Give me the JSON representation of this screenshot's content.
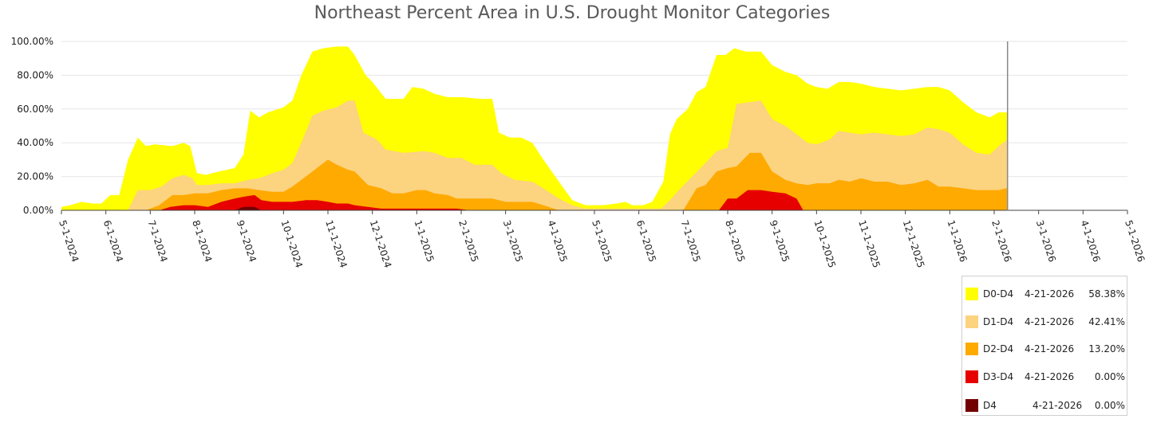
{
  "chart_data": {
    "type": "area",
    "title": "Northeast Percent Area in U.S. Drought Monitor Categories",
    "xlabel": "",
    "ylabel": "",
    "ylim": [
      0,
      100
    ],
    "y_ticks": [
      "0.00%",
      "20.00%",
      "40.00%",
      "60.00%",
      "80.00%",
      "100.00%"
    ],
    "x_ticks": [
      "5-1-2024",
      "6-1-2024",
      "7-1-2024",
      "8-1-2024",
      "9-1-2024",
      "10-1-2024",
      "11-1-2024",
      "12-1-2024",
      "1-1-2025",
      "2-1-2025",
      "3-1-2025",
      "4-1-2025",
      "5-1-2025",
      "6-1-2025",
      "7-1-2025",
      "8-1-2025",
      "9-1-2025",
      "10-1-2025",
      "11-1-2025",
      "12-1-2025",
      "1-1-2026",
      "2-1-2026",
      "3-1-2026",
      "4-1-2026",
      "5-1-2026"
    ],
    "grid": true,
    "legend_position": "bottom-right",
    "series": [
      {
        "name": "D0-D4",
        "color": "#ffff00",
        "legend_date": "4-21-2026",
        "legend_value": "58.38%",
        "points": [
          [
            0,
            2
          ],
          [
            0.2,
            3
          ],
          [
            0.45,
            5
          ],
          [
            0.7,
            4
          ],
          [
            0.9,
            4
          ],
          [
            1.1,
            9
          ],
          [
            1.3,
            9
          ],
          [
            1.5,
            30
          ],
          [
            1.72,
            43
          ],
          [
            1.9,
            38
          ],
          [
            2.1,
            39
          ],
          [
            2.5,
            38
          ],
          [
            2.75,
            40
          ],
          [
            2.9,
            38
          ],
          [
            3.05,
            22
          ],
          [
            3.25,
            21
          ],
          [
            3.55,
            23
          ],
          [
            3.9,
            25
          ],
          [
            4.1,
            33
          ],
          [
            4.25,
            59
          ],
          [
            4.45,
            55
          ],
          [
            4.65,
            58
          ],
          [
            5.0,
            61
          ],
          [
            5.2,
            65
          ],
          [
            5.4,
            80
          ],
          [
            5.65,
            94
          ],
          [
            5.9,
            96
          ],
          [
            6.2,
            97
          ],
          [
            6.45,
            97
          ],
          [
            6.6,
            92
          ],
          [
            6.85,
            80
          ],
          [
            7.0,
            76
          ],
          [
            7.3,
            66
          ],
          [
            7.7,
            66
          ],
          [
            7.9,
            73
          ],
          [
            8.15,
            72
          ],
          [
            8.4,
            69
          ],
          [
            8.7,
            67
          ],
          [
            9.0,
            67
          ],
          [
            9.45,
            66
          ],
          [
            9.7,
            66
          ],
          [
            9.85,
            46
          ],
          [
            10.1,
            43
          ],
          [
            10.35,
            43
          ],
          [
            10.6,
            40
          ],
          [
            10.85,
            30
          ],
          [
            11.2,
            17
          ],
          [
            11.5,
            6
          ],
          [
            11.8,
            3
          ],
          [
            12.2,
            3
          ],
          [
            12.5,
            4
          ],
          [
            12.7,
            5
          ],
          [
            12.85,
            3
          ],
          [
            13.1,
            3
          ],
          [
            13.3,
            5
          ],
          [
            13.55,
            17
          ],
          [
            13.7,
            45
          ],
          [
            13.85,
            54
          ],
          [
            14.1,
            60
          ],
          [
            14.3,
            70
          ],
          [
            14.5,
            73
          ],
          [
            14.75,
            92
          ],
          [
            14.95,
            92
          ],
          [
            15.15,
            96
          ],
          [
            15.4,
            94
          ],
          [
            15.75,
            94
          ],
          [
            16.0,
            86
          ],
          [
            16.3,
            82
          ],
          [
            16.55,
            80
          ],
          [
            16.8,
            75
          ],
          [
            17.0,
            73
          ],
          [
            17.25,
            72
          ],
          [
            17.5,
            76
          ],
          [
            17.75,
            76
          ],
          [
            18.0,
            75
          ],
          [
            18.3,
            73
          ],
          [
            18.6,
            72
          ],
          [
            18.9,
            71
          ],
          [
            19.2,
            72
          ],
          [
            19.5,
            73
          ],
          [
            19.75,
            73
          ],
          [
            20.0,
            71
          ],
          [
            20.3,
            64
          ],
          [
            20.6,
            58
          ],
          [
            20.9,
            55
          ],
          [
            21.1,
            58
          ],
          [
            21.3,
            58
          ]
        ]
      },
      {
        "name": "D1-D4",
        "color": "#fcd37f",
        "legend_date": "4-21-2026",
        "legend_value": "42.41%",
        "points": [
          [
            0,
            0
          ],
          [
            1.5,
            0
          ],
          [
            1.72,
            12
          ],
          [
            2.0,
            12
          ],
          [
            2.25,
            14
          ],
          [
            2.5,
            19
          ],
          [
            2.75,
            21
          ],
          [
            2.95,
            19
          ],
          [
            3.05,
            15
          ],
          [
            3.3,
            15
          ],
          [
            3.6,
            16
          ],
          [
            3.9,
            16
          ],
          [
            4.2,
            18
          ],
          [
            4.45,
            19
          ],
          [
            4.75,
            22
          ],
          [
            5.0,
            24
          ],
          [
            5.2,
            28
          ],
          [
            5.4,
            40
          ],
          [
            5.65,
            56
          ],
          [
            5.9,
            59
          ],
          [
            6.2,
            61
          ],
          [
            6.45,
            65
          ],
          [
            6.6,
            65
          ],
          [
            6.8,
            46
          ],
          [
            7.1,
            42
          ],
          [
            7.3,
            36
          ],
          [
            7.7,
            34
          ],
          [
            8.15,
            35
          ],
          [
            8.4,
            34
          ],
          [
            8.7,
            31
          ],
          [
            9.0,
            31
          ],
          [
            9.3,
            27
          ],
          [
            9.7,
            27
          ],
          [
            9.9,
            22
          ],
          [
            10.2,
            18
          ],
          [
            10.6,
            17
          ],
          [
            10.85,
            13
          ],
          [
            11.2,
            7
          ],
          [
            11.5,
            3
          ],
          [
            11.8,
            1
          ],
          [
            13.5,
            1
          ],
          [
            13.7,
            6
          ],
          [
            13.9,
            12
          ],
          [
            14.2,
            20
          ],
          [
            14.5,
            28
          ],
          [
            14.75,
            35
          ],
          [
            15.0,
            37
          ],
          [
            15.2,
            63
          ],
          [
            15.5,
            64
          ],
          [
            15.75,
            65
          ],
          [
            16.0,
            54
          ],
          [
            16.3,
            50
          ],
          [
            16.55,
            45
          ],
          [
            16.8,
            40
          ],
          [
            17.0,
            39
          ],
          [
            17.3,
            42
          ],
          [
            17.5,
            47
          ],
          [
            17.75,
            46
          ],
          [
            18.0,
            45
          ],
          [
            18.3,
            46
          ],
          [
            18.6,
            45
          ],
          [
            18.9,
            44
          ],
          [
            19.2,
            45
          ],
          [
            19.5,
            49
          ],
          [
            19.75,
            48
          ],
          [
            20.0,
            46
          ],
          [
            20.3,
            39
          ],
          [
            20.6,
            34
          ],
          [
            20.9,
            33
          ],
          [
            21.1,
            38
          ],
          [
            21.3,
            42
          ]
        ]
      },
      {
        "name": "D2-D4",
        "color": "#ffaa00",
        "legend_date": "4-21-2026",
        "legend_value": "13.20%",
        "points": [
          [
            0,
            0
          ],
          [
            1.9,
            0
          ],
          [
            2.2,
            3
          ],
          [
            2.5,
            9
          ],
          [
            2.75,
            9
          ],
          [
            3.0,
            10
          ],
          [
            3.3,
            10
          ],
          [
            3.6,
            12
          ],
          [
            3.9,
            13
          ],
          [
            4.2,
            13
          ],
          [
            4.45,
            12
          ],
          [
            4.75,
            11
          ],
          [
            5.0,
            11
          ],
          [
            5.2,
            14
          ],
          [
            5.5,
            20
          ],
          [
            5.75,
            25
          ],
          [
            6.0,
            30
          ],
          [
            6.2,
            27
          ],
          [
            6.45,
            24
          ],
          [
            6.6,
            23
          ],
          [
            6.9,
            15
          ],
          [
            7.2,
            13
          ],
          [
            7.45,
            10
          ],
          [
            7.7,
            10
          ],
          [
            8.0,
            12
          ],
          [
            8.2,
            12
          ],
          [
            8.4,
            10
          ],
          [
            8.7,
            9
          ],
          [
            8.9,
            7
          ],
          [
            9.2,
            7
          ],
          [
            9.45,
            7
          ],
          [
            9.7,
            7
          ],
          [
            10.0,
            5
          ],
          [
            10.3,
            5
          ],
          [
            10.6,
            5
          ],
          [
            10.85,
            3
          ],
          [
            11.2,
            0
          ],
          [
            14.0,
            0
          ],
          [
            14.3,
            13
          ],
          [
            14.5,
            15
          ],
          [
            14.75,
            23
          ],
          [
            15.0,
            25
          ],
          [
            15.2,
            26
          ],
          [
            15.5,
            34
          ],
          [
            15.75,
            34
          ],
          [
            16.0,
            23
          ],
          [
            16.3,
            18
          ],
          [
            16.55,
            16
          ],
          [
            16.8,
            15
          ],
          [
            17.0,
            16
          ],
          [
            17.3,
            16
          ],
          [
            17.5,
            18
          ],
          [
            17.75,
            17
          ],
          [
            18.0,
            19
          ],
          [
            18.3,
            17
          ],
          [
            18.6,
            17
          ],
          [
            18.9,
            15
          ],
          [
            19.2,
            16
          ],
          [
            19.5,
            18
          ],
          [
            19.75,
            14
          ],
          [
            20.0,
            14
          ],
          [
            20.3,
            13
          ],
          [
            20.6,
            12
          ],
          [
            20.9,
            12
          ],
          [
            21.1,
            12
          ],
          [
            21.3,
            13.2
          ]
        ]
      },
      {
        "name": "D3-D4",
        "color": "#e60000",
        "legend_date": "4-21-2026",
        "legend_value": "0.00%",
        "points": [
          [
            0,
            0
          ],
          [
            2.2,
            0
          ],
          [
            2.45,
            2
          ],
          [
            2.75,
            3
          ],
          [
            3.0,
            3
          ],
          [
            3.3,
            2
          ],
          [
            3.6,
            5
          ],
          [
            3.9,
            7
          ],
          [
            4.1,
            8
          ],
          [
            4.35,
            9
          ],
          [
            4.5,
            6
          ],
          [
            4.75,
            5
          ],
          [
            5.0,
            5
          ],
          [
            5.2,
            5
          ],
          [
            5.5,
            6
          ],
          [
            5.75,
            6
          ],
          [
            6.0,
            5
          ],
          [
            6.2,
            4
          ],
          [
            6.45,
            4
          ],
          [
            6.6,
            3
          ],
          [
            6.9,
            2
          ],
          [
            7.2,
            1
          ],
          [
            7.5,
            1
          ],
          [
            7.9,
            1
          ],
          [
            8.2,
            1
          ],
          [
            8.5,
            1
          ],
          [
            8.9,
            1
          ],
          [
            9.2,
            0
          ],
          [
            14.8,
            0
          ],
          [
            15.0,
            7
          ],
          [
            15.2,
            7
          ],
          [
            15.45,
            12
          ],
          [
            15.75,
            12
          ],
          [
            16.0,
            11
          ],
          [
            16.3,
            10
          ],
          [
            16.55,
            7
          ],
          [
            16.7,
            0
          ],
          [
            21.3,
            0
          ]
        ]
      },
      {
        "name": "D4",
        "color": "#730000",
        "legend_date": "4-21-2026",
        "legend_value": "0.00%",
        "points": [
          [
            0,
            0
          ],
          [
            3.9,
            0
          ],
          [
            4.1,
            2
          ],
          [
            4.35,
            2
          ],
          [
            4.5,
            0
          ],
          [
            21.3,
            0
          ]
        ]
      }
    ]
  }
}
